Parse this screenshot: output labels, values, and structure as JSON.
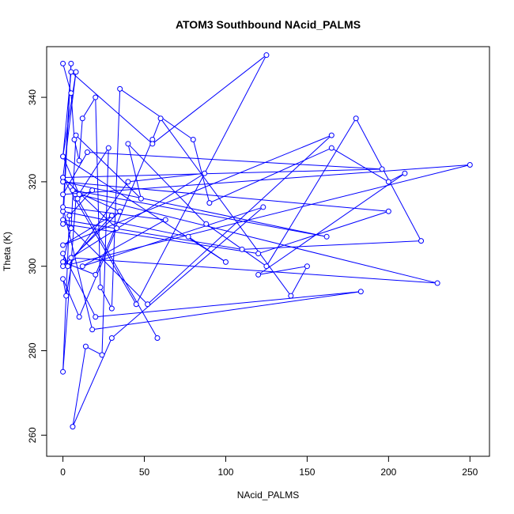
{
  "chart_data": {
    "type": "line",
    "title": "ATOM3 Southbound NAcid_PALMS",
    "xlabel": "NAcid_PALMS",
    "ylabel": "Theta (K)",
    "xlim": [
      -10,
      262
    ],
    "ylim": [
      255,
      352
    ],
    "xticks": [
      0,
      50,
      100,
      150,
      200,
      250
    ],
    "yticks": [
      260,
      280,
      300,
      320,
      340
    ],
    "grid": false,
    "legend": "none",
    "series_color": "#0000ff",
    "x": [
      0,
      5,
      7,
      10,
      12,
      20,
      23,
      30,
      35,
      80,
      90,
      165,
      200,
      210,
      120,
      150,
      140,
      60,
      55,
      20,
      0,
      5,
      8,
      48,
      40,
      88,
      125,
      180,
      220,
      110,
      0,
      52,
      165,
      0,
      30,
      6,
      2,
      0,
      10,
      33,
      0,
      45,
      125,
      55,
      5,
      0,
      8,
      0,
      196,
      15,
      0,
      250,
      0,
      35,
      6,
      162,
      0,
      200,
      120,
      0,
      5,
      0,
      77,
      100,
      0,
      10,
      230,
      5,
      87,
      40,
      3,
      0,
      20,
      183,
      18,
      0,
      63,
      12,
      123,
      30,
      6,
      14,
      24,
      28,
      8,
      0,
      4,
      18,
      9,
      58
    ],
    "y": [
      348,
      341,
      330,
      325,
      335,
      340,
      295,
      290,
      342,
      330,
      315,
      328,
      320,
      322,
      298,
      300,
      293,
      335,
      330,
      298,
      301,
      309,
      331,
      316,
      329,
      310,
      300,
      335,
      306,
      304,
      311,
      291,
      331,
      305,
      312,
      302,
      293,
      297,
      288,
      309,
      321,
      291,
      350,
      329,
      346,
      326,
      346,
      321,
      323,
      327,
      317,
      324,
      300,
      313,
      318,
      307,
      320,
      313,
      303,
      310,
      348,
      313,
      307,
      301,
      326,
      317,
      296,
      302,
      322,
      320,
      300,
      303,
      288,
      294,
      285,
      314,
      311,
      300,
      314,
      283,
      262,
      281,
      279,
      328,
      316,
      275,
      312,
      318,
      316,
      283
    ]
  }
}
